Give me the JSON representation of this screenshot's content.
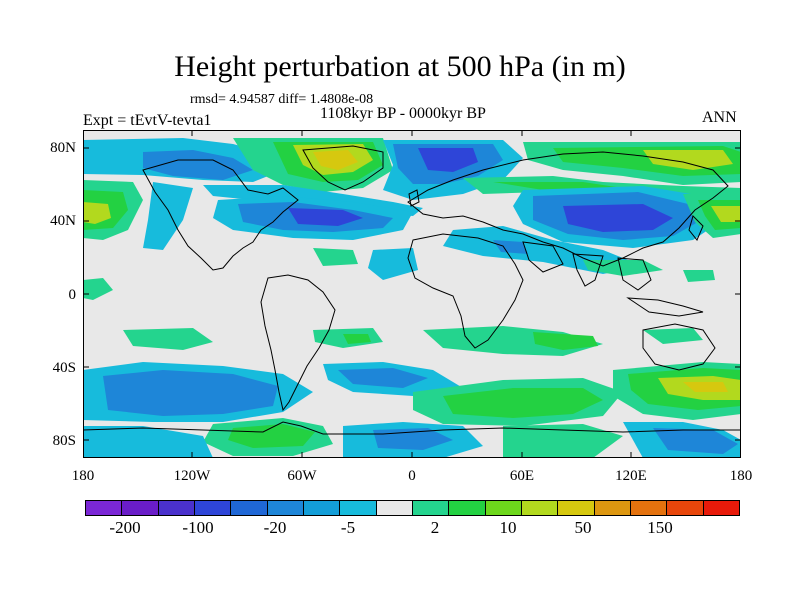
{
  "title": "Height perturbation at 500 hPa (in m)",
  "stats": "rmsd= 4.94587 diff= 1.4808e-08",
  "period": "1108kyr BP - 0000kyr BP",
  "experiment": "Expt = tEvtV-tevta1",
  "season": "ANN",
  "lat_labels": [
    "80N",
    "40N",
    "0",
    "40S",
    "80S"
  ],
  "lon_labels": [
    "180",
    "120W",
    "60W",
    "0",
    "60E",
    "120E",
    "180"
  ],
  "colorbar": {
    "colors": [
      "#7b27d6",
      "#6a1dc8",
      "#4a31cc",
      "#2e45d8",
      "#1f67d6",
      "#1e86d8",
      "#139ed8",
      "#17bbdc",
      "#e8e8e8",
      "#24d48e",
      "#23d142",
      "#6dd71c",
      "#b2d91e",
      "#d6c80f",
      "#dd9710",
      "#e4720e",
      "#e8460b",
      "#e81a0a"
    ],
    "labels": [
      "-200",
      "-100",
      "-20",
      "-5",
      "2",
      "10",
      "50",
      "150"
    ]
  },
  "legend_colors": {
    "neutral": "#e8e8e8",
    "light_blue": "#17bbdc",
    "blue": "#1e86d8",
    "dark_blue": "#2e45d8",
    "teal_green": "#24d48e",
    "green": "#23d142",
    "yellow_green": "#b2d91e",
    "orange": "#dd9710"
  }
}
